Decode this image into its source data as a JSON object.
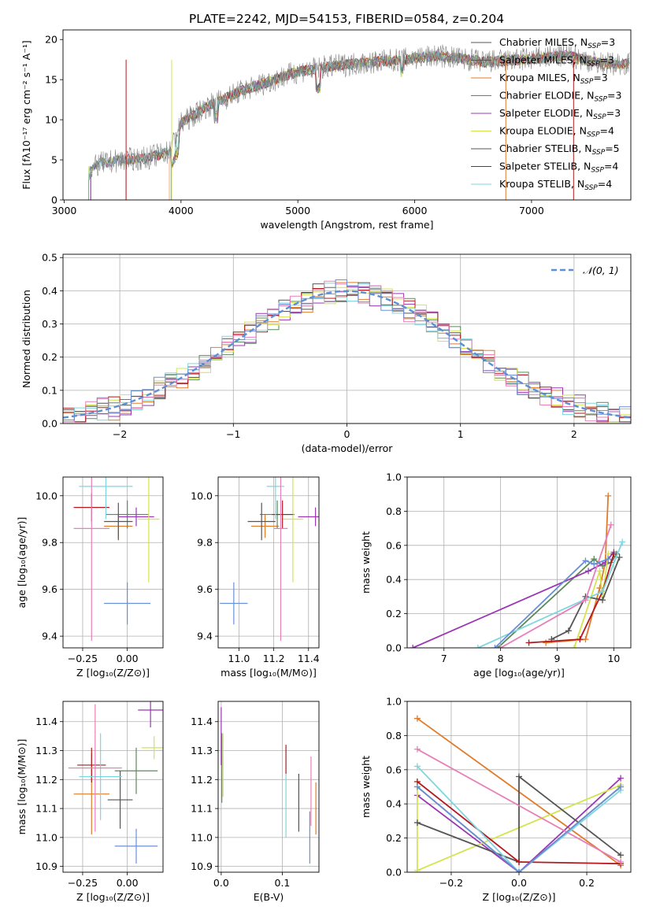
{
  "figure_title": "PLATE=2242, MJD=54153, FIBERID=0584, z=0.204",
  "colors": {
    "c1": "#e07b2a",
    "c2": "#5a8a5a",
    "c3": "#9b36b4",
    "c4": "#d4e44c",
    "c5": "#555555",
    "c6": "#b3191e",
    "c7": "#7fd6de",
    "c8": "#e87fb8",
    "c9": "#6a8fd6",
    "spec": "#888888",
    "grid": "#b0b0b0",
    "norm": "#5b8fd6"
  },
  "chart_data": [
    {
      "id": "spectrum",
      "type": "line",
      "xlabel": "wavelength [Angstrom, rest frame]",
      "ylabel": "Flux [fλ10⁻¹⁷ erg cm⁻² s⁻¹ A⁻¹]",
      "xlim": [
        2990,
        7850
      ],
      "ylim": [
        0,
        21.2
      ],
      "xticks": [
        3000,
        4000,
        5000,
        6000,
        7000
      ],
      "yticks": [
        0,
        5,
        10,
        15,
        20
      ],
      "grid": false,
      "legend": "top-right",
      "continuum": {
        "x": [
          3210,
          3300,
          3500,
          3700,
          3900,
          4000,
          4200,
          4500,
          5000,
          5200,
          5500,
          5900,
          6200,
          6600,
          7000,
          7300,
          7600,
          7800
        ],
        "y": [
          3.5,
          4.5,
          5.0,
          5.2,
          6.0,
          9.5,
          11.5,
          13.5,
          16.0,
          16.5,
          17.0,
          17.5,
          18.0,
          17.2,
          17.6,
          18.0,
          17.0,
          17.0
        ]
      },
      "legend_entries": [
        {
          "text": "Chabrier MILES, N",
          "sub": "SSP",
          "suffix": "=3",
          "color": "c5"
        },
        {
          "text": "Salpeter MILES, N",
          "sub": "SSP",
          "suffix": "=3",
          "color": "c5"
        },
        {
          "text": "Kroupa MILES, N",
          "sub": "SSP",
          "suffix": "=3",
          "color": "c1"
        },
        {
          "text": "Chabrier ELODIE, N",
          "sub": "SSP",
          "suffix": "=3",
          "color": "c2"
        },
        {
          "text": "Salpeter ELODIE, N",
          "sub": "SSP",
          "suffix": "=3",
          "color": "c3"
        },
        {
          "text": "Kroupa ELODIE, N",
          "sub": "SSP",
          "suffix": "=4",
          "color": "c4"
        },
        {
          "text": "Chabrier STELIB, N",
          "sub": "SSP",
          "suffix": "=5",
          "color": "c5"
        },
        {
          "text": "Salpeter STELIB, N",
          "sub": "SSP",
          "suffix": "=4",
          "color": "c6"
        },
        {
          "text": "Kroupa STELIB, N",
          "sub": "SSP",
          "suffix": "=4",
          "color": "c7"
        }
      ]
    },
    {
      "id": "residuals",
      "type": "line",
      "xlabel": "(data-model)/error",
      "ylabel": "Normed distribution",
      "xlim": [
        -2.5,
        2.5
      ],
      "ylim": [
        0,
        0.51
      ],
      "xticks": [
        -2,
        -1,
        0,
        1,
        2
      ],
      "yticks": [
        0.0,
        0.1,
        0.2,
        0.3,
        0.4,
        0.5
      ],
      "grid": true,
      "legend": "top-right",
      "legend_text": "𝒩(0, 1)"
    },
    {
      "id": "age_vs_Z",
      "type": "scatter",
      "xlabel": "Z [log₁₀(Z/Z⊙)]",
      "ylabel": "age  [log₁₀(age/yr)]",
      "xlim": [
        -0.36,
        0.2
      ],
      "ylim": [
        9.35,
        10.08
      ],
      "xticks": [
        -0.25,
        0.0
      ],
      "yticks": [
        9.4,
        9.6,
        9.8,
        10.0
      ],
      "grid": true,
      "points": [
        {
          "x": -0.05,
          "y": 9.87,
          "xe": 0.08,
          "ye": 0.05,
          "color": "c1"
        },
        {
          "x": 0.0,
          "y": 9.92,
          "xe": 0.12,
          "ye": 0.06,
          "color": "c2"
        },
        {
          "x": 0.05,
          "y": 9.91,
          "xe": 0.1,
          "ye": 0.04,
          "color": "c3"
        },
        {
          "x": 0.12,
          "y": 9.9,
          "xe": 0.06,
          "ye": 0.27,
          "color": "c4"
        },
        {
          "x": -0.05,
          "y": 9.89,
          "xe": 0.08,
          "ye": 0.08,
          "color": "c5"
        },
        {
          "x": -0.2,
          "y": 9.95,
          "xe": 0.1,
          "ye": 0.06,
          "color": "c6"
        },
        {
          "x": -0.12,
          "y": 10.04,
          "xe": 0.15,
          "ye": 0.14,
          "color": "c7"
        },
        {
          "x": -0.2,
          "y": 9.86,
          "xe": 0.1,
          "ye": 0.48,
          "color": "c8"
        },
        {
          "x": 0.0,
          "y": 9.54,
          "xe": 0.13,
          "ye": 0.09,
          "color": "c9"
        }
      ]
    },
    {
      "id": "age_vs_mass",
      "type": "scatter",
      "xlabel": "mass [log₁₀(M/M⊙)]",
      "ylabel": "",
      "xlim": [
        10.88,
        11.46
      ],
      "ylim": [
        9.35,
        10.08
      ],
      "xticks": [
        11.0,
        11.2,
        11.4
      ],
      "yticks": [
        9.4,
        9.6,
        9.8,
        10.0
      ],
      "grid": true,
      "points": [
        {
          "x": 11.15,
          "y": 9.87,
          "xe": 0.08,
          "ye": 0.05,
          "color": "c1"
        },
        {
          "x": 11.22,
          "y": 9.92,
          "xe": 0.1,
          "ye": 0.06,
          "color": "c2"
        },
        {
          "x": 11.44,
          "y": 9.91,
          "xe": 0.1,
          "ye": 0.04,
          "color": "c3"
        },
        {
          "x": 11.31,
          "y": 9.9,
          "xe": 0.06,
          "ye": 0.27,
          "color": "c4"
        },
        {
          "x": 11.13,
          "y": 9.89,
          "xe": 0.08,
          "ye": 0.08,
          "color": "c5"
        },
        {
          "x": 11.25,
          "y": 9.92,
          "xe": 0.06,
          "ye": 0.06,
          "color": "c6"
        },
        {
          "x": 11.21,
          "y": 10.04,
          "xe": 0.05,
          "ye": 0.14,
          "color": "c7"
        },
        {
          "x": 11.24,
          "y": 9.86,
          "xe": 0.04,
          "ye": 0.48,
          "color": "c8"
        },
        {
          "x": 10.97,
          "y": 9.54,
          "xe": 0.08,
          "ye": 0.09,
          "color": "c9"
        }
      ]
    },
    {
      "id": "weight_vs_age",
      "type": "line",
      "xlabel": "age  [log₁₀(age/yr)]",
      "ylabel": "mass weight",
      "xlim": [
        6.35,
        10.3
      ],
      "ylim": [
        0,
        1.0
      ],
      "xticks": [
        7,
        8,
        9,
        10
      ],
      "yticks": [
        0.0,
        0.2,
        0.4,
        0.6,
        0.8,
        1.0
      ],
      "grid": true,
      "series": [
        {
          "color": "c1",
          "x": [
            8.8,
            9.5,
            9.75,
            9.85,
            9.9
          ],
          "y": [
            0.03,
            0.05,
            0.35,
            0.5,
            0.89
          ]
        },
        {
          "color": "c2",
          "x": [
            7.95,
            9.65,
            9.8,
            9.95,
            10.05
          ],
          "y": [
            0.0,
            0.52,
            0.48,
            0.5,
            0.55
          ]
        },
        {
          "color": "c3",
          "x": [
            6.45,
            9.55,
            9.85,
            10.0
          ],
          "y": [
            0.0,
            0.45,
            0.5,
            0.56
          ]
        },
        {
          "color": "c4",
          "x": [
            9.3,
            9.75,
            9.8,
            9.9
          ],
          "y": [
            0.0,
            0.45,
            0.3,
            0.55
          ]
        },
        {
          "color": "c5",
          "x": [
            8.9,
            9.2,
            9.5,
            9.8,
            10.1
          ],
          "y": [
            0.05,
            0.1,
            0.3,
            0.28,
            0.53
          ]
        },
        {
          "color": "c6",
          "x": [
            8.5,
            9.4,
            9.8,
            10.0
          ],
          "y": [
            0.03,
            0.05,
            0.33,
            0.55
          ]
        },
        {
          "color": "c7",
          "x": [
            7.6,
            9.8,
            10.15
          ],
          "y": [
            0.0,
            0.33,
            0.62
          ]
        },
        {
          "color": "c8",
          "x": [
            8.0,
            9.5,
            9.95
          ],
          "y": [
            0.0,
            0.28,
            0.72
          ]
        },
        {
          "color": "c9",
          "x": [
            7.9,
            9.5,
            9.65,
            9.9
          ],
          "y": [
            0.0,
            0.51,
            0.49,
            0.52
          ]
        }
      ]
    },
    {
      "id": "mass_vs_Z",
      "type": "scatter",
      "xlabel": "Z [log₁₀(Z/Z⊙)]",
      "ylabel": "mass [log₁₀(M/M⊙)]",
      "xlim": [
        -0.36,
        0.2
      ],
      "ylim": [
        10.88,
        11.47
      ],
      "xticks": [
        -0.25,
        0.0
      ],
      "yticks": [
        10.9,
        11.0,
        11.1,
        11.2,
        11.3,
        11.4
      ],
      "grid": true,
      "points": [
        {
          "x": -0.2,
          "y": 11.15,
          "xe": 0.1,
          "ye": 0.14,
          "color": "c1"
        },
        {
          "x": 0.05,
          "y": 11.23,
          "xe": 0.12,
          "ye": 0.08,
          "color": "c2"
        },
        {
          "x": 0.13,
          "y": 11.44,
          "xe": 0.07,
          "ye": 0.06,
          "color": "c3"
        },
        {
          "x": 0.15,
          "y": 11.31,
          "xe": 0.07,
          "ye": 0.04,
          "color": "c4"
        },
        {
          "x": -0.04,
          "y": 11.13,
          "xe": 0.07,
          "ye": 0.1,
          "color": "c5"
        },
        {
          "x": -0.2,
          "y": 11.25,
          "xe": 0.08,
          "ye": 0.06,
          "color": "c6"
        },
        {
          "x": -0.15,
          "y": 11.21,
          "xe": 0.12,
          "ye": 0.15,
          "color": "c7"
        },
        {
          "x": -0.18,
          "y": 11.24,
          "xe": 0.15,
          "ye": 0.22,
          "color": "c8"
        },
        {
          "x": 0.05,
          "y": 10.97,
          "xe": 0.12,
          "ye": 0.06,
          "color": "c9"
        }
      ]
    },
    {
      "id": "mass_vs_EBV",
      "type": "scatter",
      "xlabel": "E(B-V)",
      "ylabel": "",
      "xlim": [
        -0.005,
        0.16
      ],
      "ylim": [
        10.88,
        11.47
      ],
      "xticks": [
        0.0,
        0.1
      ],
      "yticks": [
        10.9,
        11.0,
        11.1,
        11.2,
        11.3,
        11.4
      ],
      "grid": true,
      "points": [
        {
          "x": 0.155,
          "y": 11.1,
          "xe": 0,
          "ye": 0.09,
          "color": "c1"
        },
        {
          "x": 0.001,
          "y": 11.24,
          "xe": 0,
          "ye": 0.12,
          "color": "c2"
        },
        {
          "x": 0.0,
          "y": 11.35,
          "xe": 0,
          "ye": 0.1,
          "color": "c3"
        },
        {
          "x": 0.003,
          "y": 11.25,
          "xe": 0,
          "ye": 0.11,
          "color": "c4"
        },
        {
          "x": 0.127,
          "y": 11.12,
          "xe": 0,
          "ye": 0.1,
          "color": "c5"
        },
        {
          "x": 0.106,
          "y": 11.27,
          "xe": 0,
          "ye": 0.05,
          "color": "c6"
        },
        {
          "x": 0.106,
          "y": 11.11,
          "xe": 0,
          "ye": 0.11,
          "color": "c7"
        },
        {
          "x": 0.147,
          "y": 11.16,
          "xe": 0,
          "ye": 0.12,
          "color": "c8"
        },
        {
          "x": 0.145,
          "y": 11.0,
          "xe": 0,
          "ye": 0.09,
          "color": "c9"
        }
      ]
    },
    {
      "id": "weight_vs_Z",
      "type": "line",
      "xlabel": "Z [log₁₀(Z/Z⊙)]",
      "ylabel": "mass weight",
      "xlim": [
        -0.33,
        0.33
      ],
      "ylim": [
        0,
        1.0
      ],
      "xticks": [
        -0.2,
        0.0,
        0.2
      ],
      "yticks": [
        0.0,
        0.2,
        0.4,
        0.6,
        0.8,
        1.0
      ],
      "grid": true,
      "series": [
        {
          "color": "c1",
          "x": [
            -0.3,
            0.3
          ],
          "y": [
            0.9,
            0.04
          ]
        },
        {
          "color": "c2",
          "x": [
            -0.3,
            0.0,
            0.3
          ],
          "y": [
            0.5,
            0.0,
            0.5
          ]
        },
        {
          "color": "c3",
          "x": [
            -0.3,
            0.0,
            0.3
          ],
          "y": [
            0.45,
            0.0,
            0.55
          ]
        },
        {
          "color": "c4",
          "x": [
            -0.3,
            -0.3,
            0.3
          ],
          "y": [
            0.53,
            0.01,
            0.51
          ]
        },
        {
          "color": "c5",
          "x": [
            -0.3,
            0.0,
            0.0,
            0.3
          ],
          "y": [
            0.29,
            0.06,
            0.56,
            0.1
          ]
        },
        {
          "color": "c6",
          "x": [
            -0.3,
            0.0,
            0.3
          ],
          "y": [
            0.53,
            0.06,
            0.05
          ]
        },
        {
          "color": "c7",
          "x": [
            -0.3,
            0.0,
            0.3
          ],
          "y": [
            0.62,
            0.0,
            0.48
          ]
        },
        {
          "color": "c8",
          "x": [
            -0.3,
            0.3
          ],
          "y": [
            0.72,
            0.06
          ]
        },
        {
          "color": "c9",
          "x": [
            -0.3,
            0.0,
            0.3
          ],
          "y": [
            0.5,
            0.0,
            0.5
          ]
        }
      ]
    }
  ]
}
